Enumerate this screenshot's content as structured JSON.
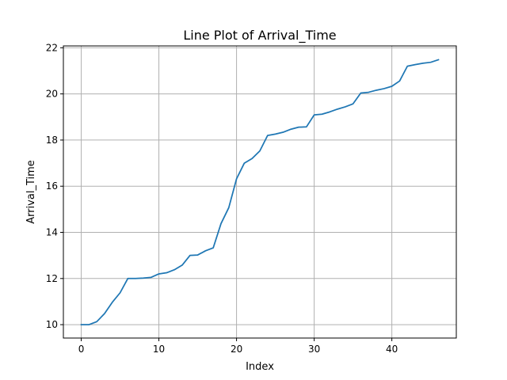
{
  "chart_data": {
    "type": "line",
    "title": "Line Plot of Arrival_Time",
    "xlabel": "Index",
    "ylabel": "Arrival_Time",
    "xlim": [
      -2.3,
      48.3
    ],
    "ylim": [
      9.42,
      22.08
    ],
    "xticks": [
      0,
      10,
      20,
      30,
      40
    ],
    "yticks": [
      10,
      12,
      14,
      16,
      18,
      20,
      22
    ],
    "grid": true,
    "series": [
      {
        "color": "#1f77b4",
        "x": [
          0,
          1,
          2,
          3,
          4,
          5,
          6,
          7,
          8,
          9,
          10,
          11,
          12,
          13,
          14,
          15,
          16,
          17,
          18,
          19,
          20,
          21,
          22,
          23,
          24,
          25,
          26,
          27,
          28,
          29,
          30,
          31,
          32,
          33,
          34,
          35,
          36,
          37,
          38,
          39,
          40,
          41,
          42,
          43,
          44,
          45,
          46
        ],
        "values": [
          10.0,
          10.0,
          10.13,
          10.48,
          10.97,
          11.38,
          12.0,
          12.0,
          12.02,
          12.05,
          12.2,
          12.25,
          12.38,
          12.58,
          13.0,
          13.02,
          13.2,
          13.33,
          14.38,
          15.07,
          16.32,
          17.0,
          17.2,
          17.53,
          18.2,
          18.26,
          18.34,
          18.47,
          18.56,
          18.57,
          19.09,
          19.12,
          19.22,
          19.34,
          19.44,
          19.57,
          20.04,
          20.07,
          20.16,
          20.23,
          20.33,
          20.56,
          21.2,
          21.27,
          21.33,
          21.37,
          21.48
        ]
      }
    ]
  }
}
